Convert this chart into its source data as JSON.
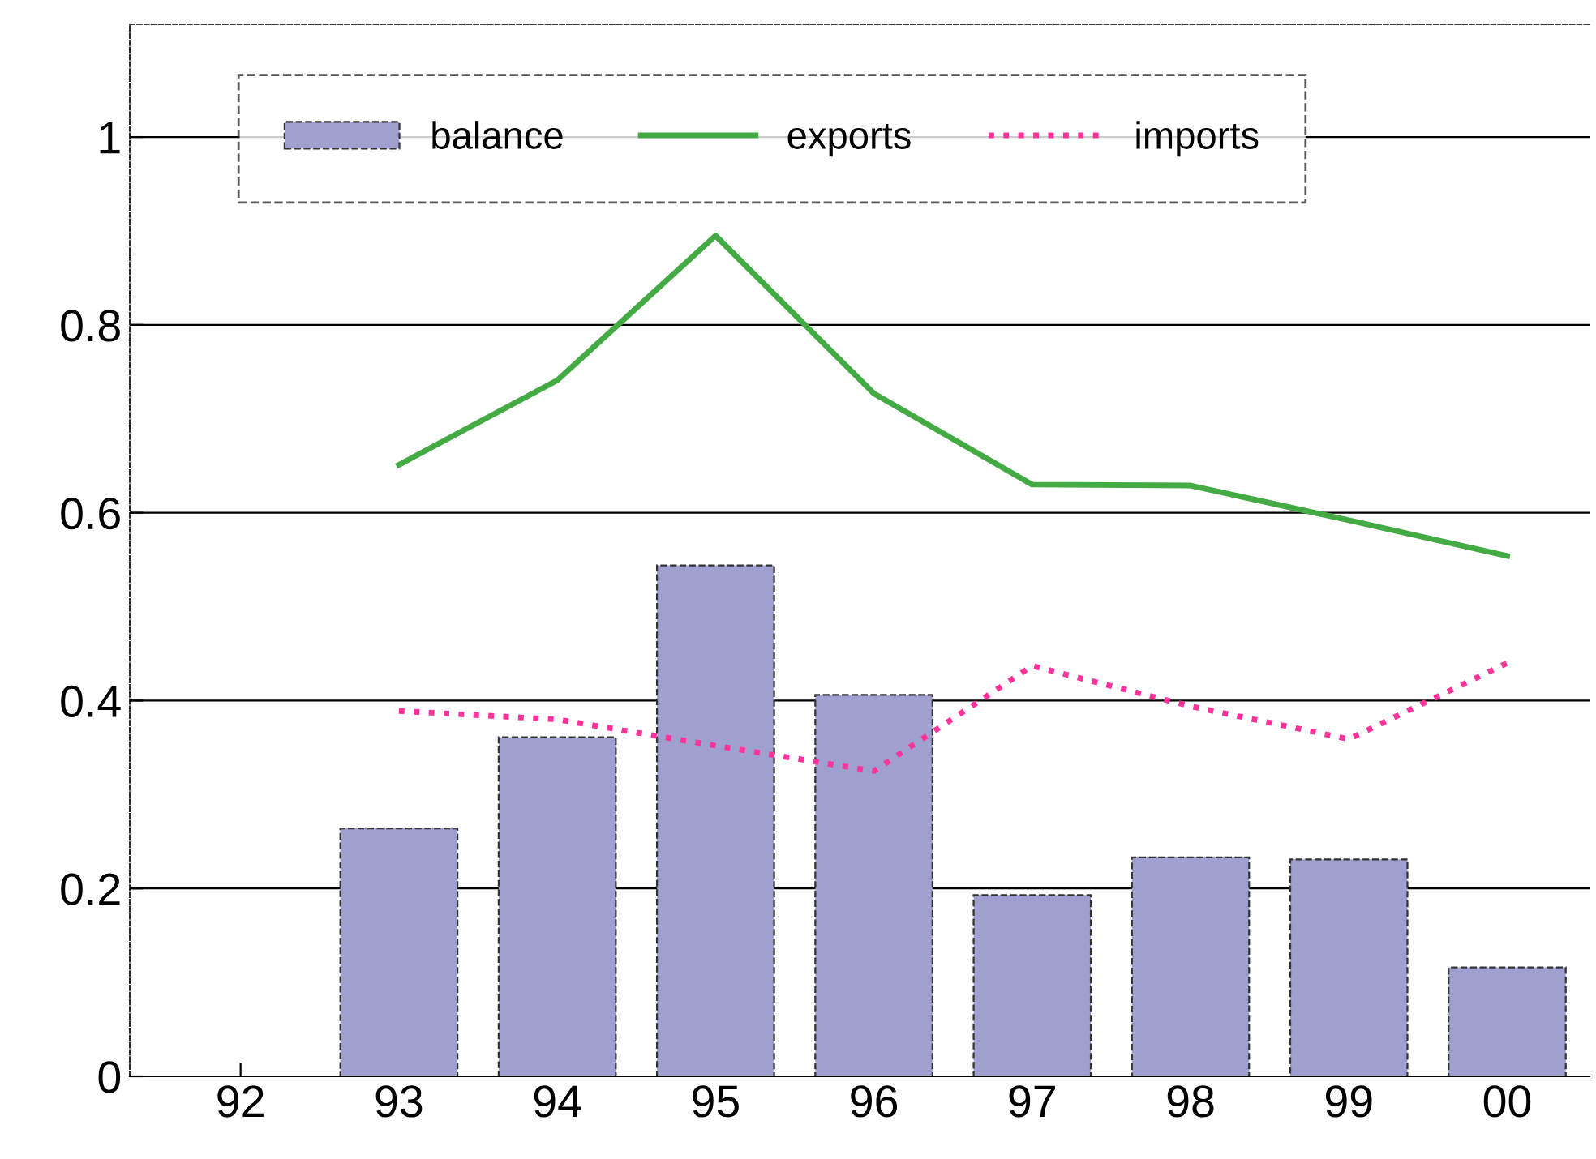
{
  "chart_data": {
    "type": "bar",
    "categories": [
      "92",
      "93",
      "94",
      "95",
      "96",
      "97",
      "98",
      "99",
      "00"
    ],
    "series": [
      {
        "name": "balance",
        "color": "#a0a0d0",
        "values": [
          null,
          0.264,
          0.361,
          0.544,
          0.406,
          0.193,
          0.233,
          0.231,
          0.116
        ]
      },
      {
        "name": "exports",
        "type": "line",
        "color": "#44aa44",
        "line_style": "solid",
        "values": [
          null,
          0.651,
          0.741,
          0.895,
          0.727,
          0.63,
          0.629,
          0.592,
          0.554
        ]
      },
      {
        "name": "imports",
        "type": "line",
        "color": "#ff3399",
        "line_style": "dotted",
        "values": [
          null,
          0.389,
          0.38,
          0.352,
          0.325,
          0.437,
          0.394,
          0.359,
          0.44
        ]
      }
    ],
    "ylim": [
      0,
      1.12
    ],
    "yticks": [
      0,
      0.2,
      0.4,
      0.6,
      0.8,
      1
    ],
    "grid": "y",
    "legend": "top"
  }
}
